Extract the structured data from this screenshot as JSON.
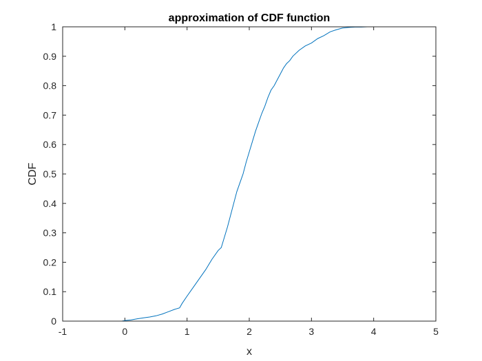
{
  "chart_data": {
    "type": "line",
    "title": "approximation of CDF function",
    "xlabel": "x",
    "ylabel": "CDF",
    "xlim": [
      -1,
      5
    ],
    "ylim": [
      0,
      1
    ],
    "xticks": [
      -1,
      0,
      1,
      2,
      3,
      4,
      5
    ],
    "xtick_labels": [
      "-1",
      "0",
      "1",
      "2",
      "3",
      "4",
      "5"
    ],
    "yticks": [
      0,
      0.1,
      0.2,
      0.3,
      0.4,
      0.5,
      0.6,
      0.7,
      0.8,
      0.9,
      1
    ],
    "ytick_labels": [
      "0",
      "0.1",
      "0.2",
      "0.3",
      "0.4",
      "0.5",
      "0.6",
      "0.7",
      "0.8",
      "0.9",
      "1"
    ],
    "grid": false,
    "line_color": "#0072BD",
    "axis_color": "#262626",
    "series": [
      {
        "x": [
          -0.05,
          0.0,
          0.1,
          0.2,
          0.3,
          0.4,
          0.5,
          0.6,
          0.7,
          0.8,
          0.88,
          0.92,
          1.0,
          1.1,
          1.2,
          1.3,
          1.4,
          1.5,
          1.55,
          1.6,
          1.65,
          1.7,
          1.75,
          1.8,
          1.85,
          1.9,
          1.95,
          2.0,
          2.05,
          2.1,
          2.15,
          2.2,
          2.25,
          2.3,
          2.35,
          2.4,
          2.45,
          2.5,
          2.55,
          2.6,
          2.65,
          2.7,
          2.8,
          2.9,
          3.0,
          3.1,
          3.2,
          3.3,
          3.4,
          3.5,
          3.6,
          3.7,
          3.8,
          3.9,
          4.0,
          4.2,
          4.6
        ],
        "y": [
          0.0,
          0.002,
          0.004,
          0.008,
          0.011,
          0.014,
          0.018,
          0.024,
          0.032,
          0.04,
          0.045,
          0.06,
          0.085,
          0.115,
          0.145,
          0.175,
          0.21,
          0.24,
          0.25,
          0.285,
          0.32,
          0.36,
          0.4,
          0.44,
          0.47,
          0.5,
          0.54,
          0.575,
          0.61,
          0.645,
          0.675,
          0.705,
          0.73,
          0.76,
          0.785,
          0.8,
          0.82,
          0.84,
          0.86,
          0.875,
          0.885,
          0.9,
          0.92,
          0.935,
          0.945,
          0.96,
          0.97,
          0.983,
          0.99,
          0.996,
          0.998,
          0.999,
          0.999,
          1.0,
          1.0,
          1.0,
          1.0
        ]
      }
    ]
  }
}
